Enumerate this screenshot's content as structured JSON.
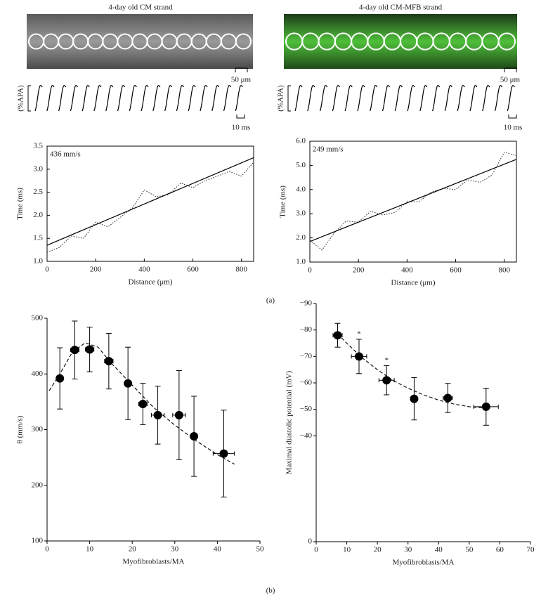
{
  "strands": [
    {
      "title": "4-day old CM strand",
      "scale_label": "50 μm",
      "trace_label": "(%APA)",
      "time_scale_label": "10 ms"
    },
    {
      "title": "4-day old CM-MFB strand",
      "scale_label": "50 μm",
      "trace_label": "(%APA)",
      "time_scale_label": "10 ms"
    }
  ],
  "panel_labels": [
    "(a)",
    "(b)"
  ],
  "chart_data": [
    {
      "type": "line",
      "annotation": "436 mm/s",
      "x_label": "Distance (μm)",
      "y_label": "Time (ms)",
      "box": true,
      "xlim": [
        0,
        850
      ],
      "ylim": [
        1.0,
        3.5
      ],
      "xticks": [
        0,
        200,
        400,
        600,
        800
      ],
      "yticks": [
        {
          "value": 1.0,
          "label": "1.0"
        },
        {
          "value": 1.5,
          "label": "1.5"
        },
        {
          "value": 2.0,
          "label": "2.0"
        },
        {
          "value": 2.5,
          "label": "2.5"
        },
        {
          "value": 3.0,
          "label": "3.0"
        },
        {
          "value": 3.5,
          "label": "3.5"
        }
      ],
      "series": [
        {
          "color": "#333333",
          "style": "dotted",
          "x": [
            0,
            50,
            100,
            150,
            200,
            250,
            300,
            350,
            400,
            450,
            500,
            550,
            600,
            650,
            700,
            750,
            800,
            850
          ],
          "values": [
            1.2,
            1.3,
            1.55,
            1.5,
            1.85,
            1.75,
            1.95,
            2.15,
            2.55,
            2.4,
            2.45,
            2.7,
            2.6,
            2.75,
            2.85,
            2.95,
            2.85,
            3.15
          ]
        },
        {
          "color": "#000000",
          "style": "solid",
          "x": [
            0,
            850
          ],
          "values": [
            1.35,
            3.25
          ]
        }
      ]
    },
    {
      "type": "line",
      "annotation": "249 mm/s",
      "x_label": "Distance (μm)",
      "y_label": "Time (ms)",
      "box": true,
      "xlim": [
        0,
        850
      ],
      "ylim": [
        1.0,
        6.0
      ],
      "xticks": [
        0,
        200,
        400,
        600,
        800
      ],
      "yticks": [
        {
          "value": 1.0,
          "label": "1.0"
        },
        {
          "value": 2.0,
          "label": "2.0"
        },
        {
          "value": 3.0,
          "label": "3.0"
        },
        {
          "value": 4.0,
          "label": "4.0"
        },
        {
          "value": 5.0,
          "label": "5.0"
        },
        {
          "value": 6.0,
          "label": "6.0"
        }
      ],
      "series": [
        {
          "color": "#333333",
          "style": "dotted",
          "x": [
            0,
            50,
            100,
            150,
            200,
            250,
            300,
            350,
            400,
            450,
            500,
            550,
            600,
            650,
            700,
            750,
            800,
            850
          ],
          "values": [
            1.9,
            1.5,
            2.2,
            2.7,
            2.65,
            3.1,
            2.95,
            3.05,
            3.5,
            3.5,
            3.9,
            4.05,
            4.0,
            4.4,
            4.3,
            4.6,
            5.55,
            5.4
          ]
        },
        {
          "color": "#000000",
          "style": "solid",
          "x": [
            0,
            850
          ],
          "values": [
            1.85,
            5.25
          ]
        }
      ]
    },
    {
      "type": "scatter",
      "x_label": "Myofibroblasts/MA",
      "y_label": "θ (mm/s)",
      "box": false,
      "xlim": [
        0,
        50
      ],
      "ylim": [
        100,
        500
      ],
      "xticks": [
        0,
        10,
        20,
        30,
        40,
        50
      ],
      "yticks": [
        100,
        200,
        300,
        400,
        500
      ],
      "series": [
        {
          "color": "#000000",
          "style": "markers",
          "x": [
            3,
            6.5,
            10,
            14.5,
            19,
            22.5,
            26,
            31,
            34.5,
            41.5
          ],
          "values": [
            392,
            443,
            444,
            423,
            383,
            346,
            326,
            326,
            288,
            257
          ],
          "errors": [
            55,
            52,
            40,
            50,
            65,
            37,
            52,
            80,
            72,
            78
          ],
          "x_errors": [
            0.5,
            1,
            1,
            1,
            0.5,
            1,
            1.5,
            1.5,
            0.5,
            2.5
          ]
        },
        {
          "color": "#000000",
          "style": "dashed",
          "x": [
            0.5,
            3,
            6,
            9,
            12,
            15,
            20,
            25,
            30,
            35,
            40,
            44
          ],
          "values": [
            370,
            400,
            440,
            456,
            448,
            420,
            380,
            340,
            308,
            280,
            255,
            238
          ]
        }
      ]
    },
    {
      "type": "scatter",
      "x_label": "Myofibroblasts/MA",
      "y_label": "Maximal diastolic potential (mV)",
      "box": false,
      "xlim": [
        0,
        70
      ],
      "ylim": [
        0,
        -90
      ],
      "xticks": [
        0,
        10,
        20,
        30,
        40,
        50,
        60,
        70
      ],
      "yticks": [
        0,
        {
          "value": -40,
          "label": "−40"
        },
        {
          "value": -50,
          "label": "−50"
        },
        {
          "value": -60,
          "label": "−60"
        },
        {
          "value": -70,
          "label": "−70"
        },
        {
          "value": -80,
          "label": "−80"
        },
        {
          "value": -90,
          "label": "−90"
        }
      ],
      "significance_label": "*",
      "series": [
        {
          "color": "#000000",
          "style": "markers",
          "x": [
            7,
            14,
            23,
            32,
            43,
            55.5
          ],
          "values": [
            -78,
            -70,
            -61,
            -54,
            -54.3,
            -51
          ],
          "errors": [
            4.5,
            6.5,
            5.5,
            8,
            5.5,
            7
          ],
          "x_errors": [
            1.5,
            2.5,
            2.5,
            0.5,
            1.5,
            4
          ],
          "significant": [
            false,
            true,
            true,
            false,
            false,
            false
          ]
        },
        {
          "color": "#000000",
          "style": "dashed",
          "x": [
            7,
            10,
            15,
            20,
            25,
            30,
            35,
            40,
            45,
            50,
            55
          ],
          "values": [
            -78.5,
            -75,
            -69.5,
            -65,
            -61,
            -58,
            -55.5,
            -53.5,
            -52,
            -51,
            -50.5
          ]
        }
      ]
    }
  ]
}
